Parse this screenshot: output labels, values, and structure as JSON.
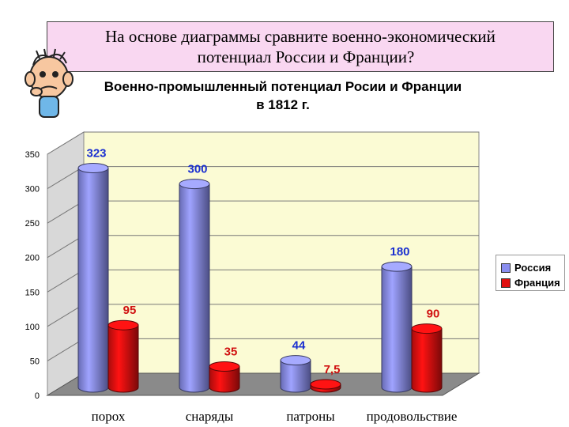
{
  "question": {
    "line1": "На основе диаграммы сравните военно-экономический",
    "line2": "потенциал России и Франции?"
  },
  "mascot_icon": "thinking-boy-cartoon",
  "chart_data": {
    "type": "bar",
    "title_line1": "Военно-промышленный потенциал Росии и Франции",
    "title_line2": "в 1812 г.",
    "categories": [
      "порох",
      "снаряды",
      "патроны",
      "продовольствие"
    ],
    "series": [
      {
        "name": "Россия",
        "values": [
          323,
          300,
          44,
          180
        ],
        "labels": [
          "323",
          "300",
          "44",
          "180"
        ],
        "color": "#8a8ef0"
      },
      {
        "name": "Франция",
        "values": [
          95,
          35,
          7.5,
          90
        ],
        "labels": [
          "95",
          "35",
          "7,5",
          "90"
        ],
        "color": "#e01010"
      }
    ],
    "ylim": [
      0,
      350
    ],
    "yticks": [
      0,
      50,
      100,
      150,
      200,
      250,
      300,
      350
    ],
    "grid": true,
    "legend_position": "right"
  }
}
